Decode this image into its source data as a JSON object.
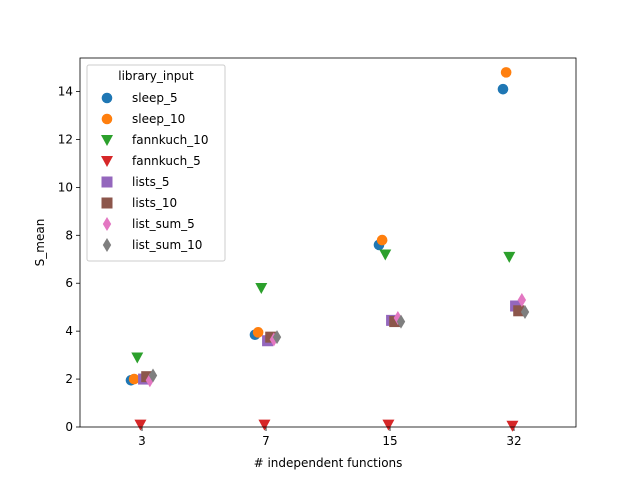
{
  "chart_data": {
    "type": "scatter",
    "title": "",
    "xlabel": "# independent functions",
    "ylabel": "S_mean",
    "categories": [
      "3",
      "7",
      "15",
      "32"
    ],
    "ylim": [
      0,
      15.4
    ],
    "yticks": [
      0,
      2,
      4,
      6,
      8,
      10,
      12,
      14
    ],
    "grid": false,
    "legend": {
      "title": "library_input",
      "placement": "upper-left"
    },
    "series": [
      {
        "name": "sleep_5",
        "marker": "circle",
        "color": "#1f77b4",
        "values": [
          1.95,
          3.85,
          7.6,
          14.1
        ]
      },
      {
        "name": "sleep_10",
        "marker": "circle",
        "color": "#ff7f0e",
        "values": [
          2.0,
          3.95,
          7.8,
          14.8
        ]
      },
      {
        "name": "fannkuch_10",
        "marker": "triangle-down",
        "color": "#2ca02c",
        "values": [
          2.9,
          5.8,
          7.2,
          7.1
        ]
      },
      {
        "name": "fannkuch_5",
        "marker": "triangle-down",
        "color": "#d62728",
        "values": [
          0.1,
          0.1,
          0.1,
          0.05
        ]
      },
      {
        "name": "lists_5",
        "marker": "square",
        "color": "#9467bd",
        "values": [
          2.0,
          3.6,
          4.45,
          5.05
        ]
      },
      {
        "name": "lists_10",
        "marker": "square",
        "color": "#8c564b",
        "values": [
          2.1,
          3.75,
          4.4,
          4.85
        ]
      },
      {
        "name": "list_sum_5",
        "marker": "thin-diamond",
        "color": "#e377c2",
        "values": [
          1.95,
          3.65,
          4.55,
          5.3
        ]
      },
      {
        "name": "list_sum_10",
        "marker": "thin-diamond",
        "color": "#7f7f7f",
        "values": [
          2.15,
          3.75,
          4.4,
          4.8
        ]
      }
    ]
  }
}
